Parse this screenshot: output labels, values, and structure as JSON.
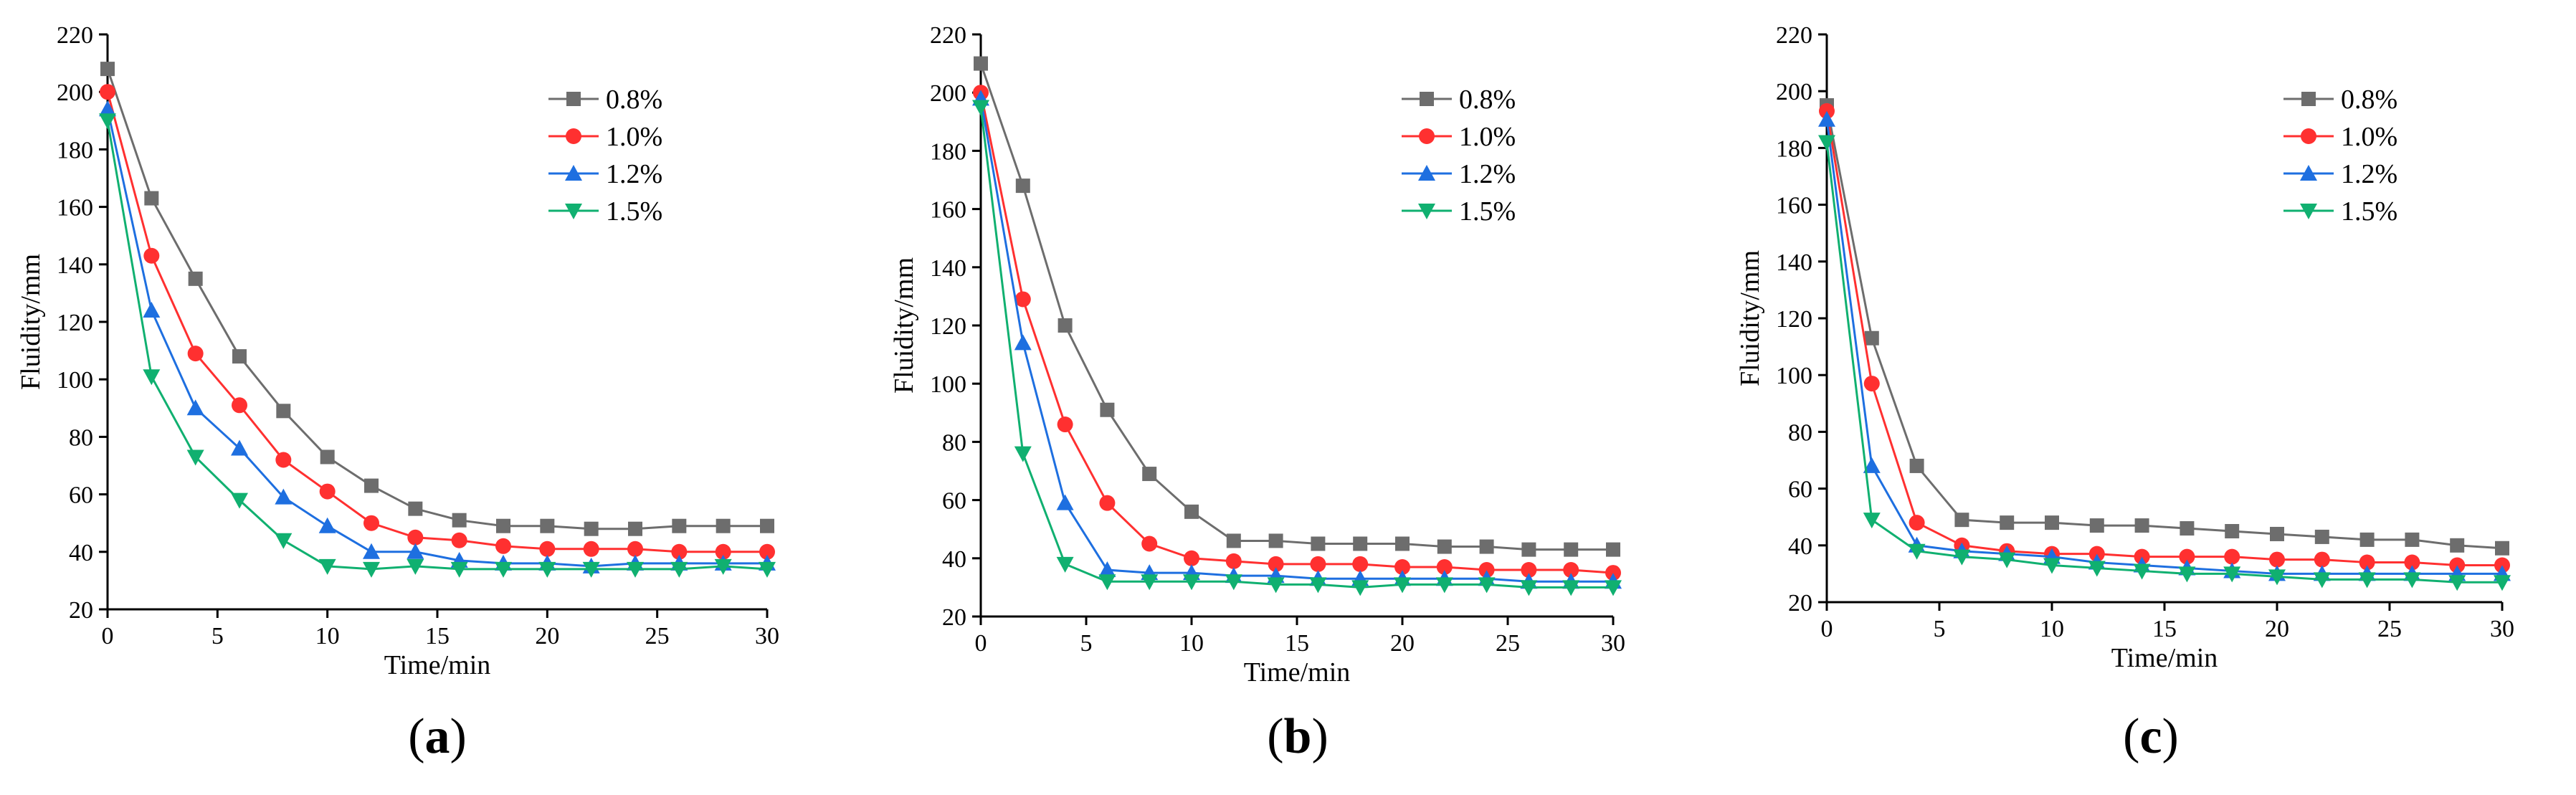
{
  "chart_data": [
    {
      "type": "line",
      "panel_label_parts": [
        "(",
        "a",
        ")"
      ],
      "xlabel": "Time/min",
      "ylabel": "Fluidity/mm",
      "xlim": [
        0,
        30
      ],
      "ylim": [
        20,
        220
      ],
      "xticks": [
        0,
        5,
        10,
        15,
        20,
        25,
        30
      ],
      "yticks": [
        20,
        40,
        60,
        80,
        100,
        120,
        140,
        160,
        180,
        200,
        220
      ],
      "legend_position": "top-right",
      "x": [
        0,
        2,
        4,
        6,
        8,
        10,
        12,
        14,
        16,
        18,
        20,
        22,
        24,
        26,
        28,
        30
      ],
      "series": [
        {
          "name": "0.8%",
          "color": "#6d6d6d",
          "marker": "square",
          "values": [
            208,
            163,
            135,
            108,
            89,
            73,
            63,
            55,
            51,
            49,
            49,
            48,
            48,
            49,
            49,
            49
          ]
        },
        {
          "name": "1.0%",
          "color": "#ff3030",
          "marker": "circle",
          "values": [
            200,
            143,
            109,
            91,
            72,
            61,
            50,
            45,
            44,
            42,
            41,
            41,
            41,
            40,
            40,
            40
          ]
        },
        {
          "name": "1.2%",
          "color": "#1e6fe0",
          "marker": "triangle-up",
          "values": [
            194,
            124,
            90,
            76,
            59,
            49,
            40,
            40,
            37,
            36,
            36,
            35,
            36,
            36,
            36,
            36
          ]
        },
        {
          "name": "1.5%",
          "color": "#10b070",
          "marker": "triangle-down",
          "values": [
            190,
            101,
            73,
            58,
            44,
            35,
            34,
            35,
            34,
            34,
            34,
            34,
            34,
            34,
            35,
            34
          ]
        }
      ]
    },
    {
      "type": "line",
      "panel_label_parts": [
        "(",
        "b",
        ")"
      ],
      "xlabel": "Time/min",
      "ylabel": "Fluidity/mm",
      "xlim": [
        0,
        30
      ],
      "ylim": [
        20,
        220
      ],
      "xticks": [
        0,
        5,
        10,
        15,
        20,
        25,
        30
      ],
      "yticks": [
        20,
        40,
        60,
        80,
        100,
        120,
        140,
        160,
        180,
        200,
        220
      ],
      "legend_position": "top-right",
      "x": [
        0,
        2,
        4,
        6,
        8,
        10,
        12,
        14,
        16,
        18,
        20,
        22,
        24,
        26,
        28,
        30
      ],
      "series": [
        {
          "name": "0.8%",
          "color": "#6d6d6d",
          "marker": "square",
          "values": [
            210,
            168,
            120,
            91,
            69,
            56,
            46,
            46,
            45,
            45,
            45,
            44,
            44,
            43,
            43,
            43
          ]
        },
        {
          "name": "1.0%",
          "color": "#ff3030",
          "marker": "circle",
          "values": [
            200,
            129,
            86,
            59,
            45,
            40,
            39,
            38,
            38,
            38,
            37,
            37,
            36,
            36,
            36,
            35
          ]
        },
        {
          "name": "1.2%",
          "color": "#1e6fe0",
          "marker": "triangle-up",
          "values": [
            198,
            114,
            59,
            36,
            35,
            35,
            34,
            34,
            33,
            33,
            33,
            33,
            33,
            32,
            32,
            32
          ]
        },
        {
          "name": "1.5%",
          "color": "#10b070",
          "marker": "triangle-down",
          "values": [
            195,
            76,
            38,
            32,
            32,
            32,
            32,
            31,
            31,
            30,
            31,
            31,
            31,
            30,
            30,
            30
          ]
        }
      ]
    },
    {
      "type": "line",
      "panel_label_parts": [
        "(",
        "c",
        ")"
      ],
      "xlabel": "Time/min",
      "ylabel": "Fluidity/mm",
      "xlim": [
        0,
        30
      ],
      "ylim": [
        20,
        220
      ],
      "xticks": [
        0,
        5,
        10,
        15,
        20,
        25,
        30
      ],
      "yticks": [
        20,
        40,
        60,
        80,
        100,
        120,
        140,
        160,
        180,
        200,
        220
      ],
      "legend_position": "top-right",
      "x": [
        0,
        2,
        4,
        6,
        8,
        10,
        12,
        14,
        16,
        18,
        20,
        22,
        24,
        26,
        28,
        30
      ],
      "series": [
        {
          "name": "0.8%",
          "color": "#6d6d6d",
          "marker": "square",
          "values": [
            195,
            113,
            68,
            49,
            48,
            48,
            47,
            47,
            46,
            45,
            44,
            43,
            42,
            42,
            40,
            39
          ]
        },
        {
          "name": "1.0%",
          "color": "#ff3030",
          "marker": "circle",
          "values": [
            193,
            97,
            48,
            40,
            38,
            37,
            37,
            36,
            36,
            36,
            35,
            35,
            34,
            34,
            33,
            33
          ]
        },
        {
          "name": "1.2%",
          "color": "#1e6fe0",
          "marker": "triangle-up",
          "values": [
            190,
            68,
            40,
            38,
            37,
            36,
            34,
            33,
            32,
            31,
            30,
            30,
            30,
            30,
            30,
            30
          ]
        },
        {
          "name": "1.5%",
          "color": "#10b070",
          "marker": "triangle-down",
          "values": [
            182,
            49,
            38,
            36,
            35,
            33,
            32,
            31,
            30,
            30,
            29,
            28,
            28,
            28,
            27,
            27
          ]
        }
      ]
    }
  ]
}
